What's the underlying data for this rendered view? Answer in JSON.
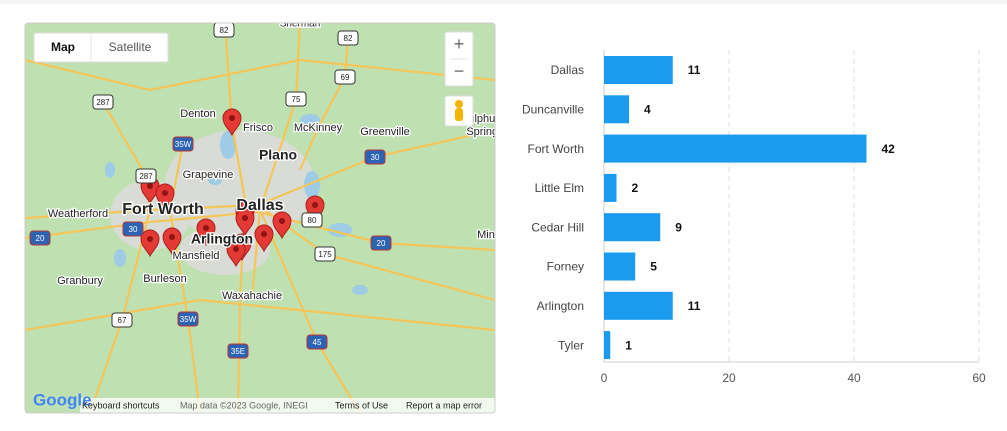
{
  "map": {
    "controls": {
      "map": "Map",
      "satellite": "Satellite",
      "zoom_in": "+",
      "zoom_out": "−"
    },
    "cities": [
      "Sherman",
      "Denton",
      "Frisco",
      "McKinney",
      "Greenville",
      "Sulphur",
      "Springs",
      "Plano",
      "Grapevine",
      "Dallas",
      "Fort Worth",
      "Weatherford",
      "Arlington",
      "Mansfield",
      "Burleson",
      "Granbury",
      "Waxahachie",
      "Min"
    ],
    "highways": [
      "82",
      "82",
      "287",
      "75",
      "69",
      "35W",
      "30",
      "287",
      "30",
      "20",
      "80",
      "175",
      "20",
      "67",
      "35W",
      "35E",
      "45"
    ],
    "footer": {
      "logo": "Google",
      "shortcuts": "Keyboard shortcuts",
      "attribution": "Map data ©2023 Google, INEGI",
      "terms": "Terms of Use",
      "report": "Report a map error"
    }
  },
  "chart_data": {
    "type": "bar",
    "orientation": "horizontal",
    "categories": [
      "Dallas",
      "Duncanville",
      "Fort Worth",
      "Little Elm",
      "Cedar Hill",
      "Forney",
      "Arlington",
      "Tyler"
    ],
    "values": [
      11,
      4,
      42,
      2,
      9,
      5,
      11,
      1
    ],
    "color": "#1a9bf0",
    "xlim": [
      0,
      60
    ],
    "xticks": [
      0,
      20,
      40,
      60
    ],
    "grid": true
  }
}
